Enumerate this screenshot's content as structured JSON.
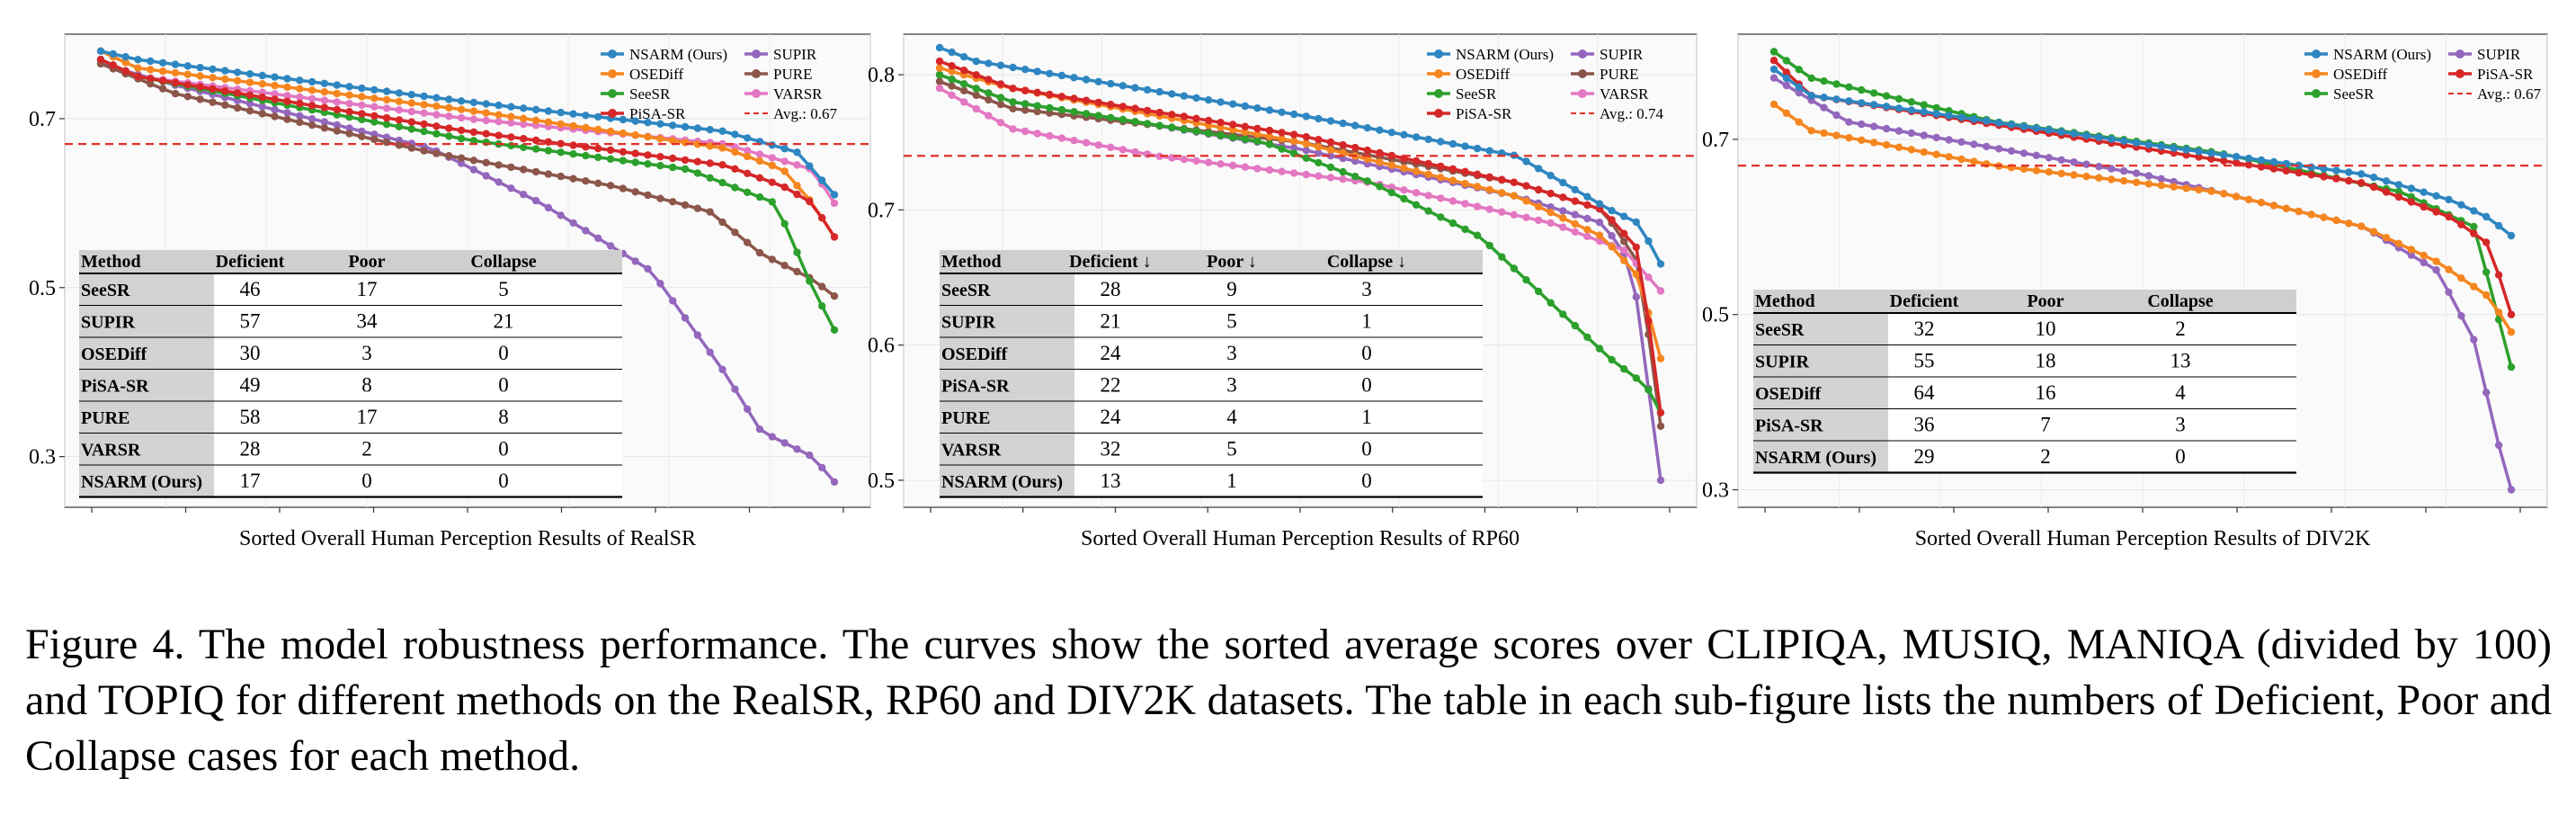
{
  "figure": {
    "caption": "Figure 4.  The model robustness performance.  The curves show the sorted average scores over CLIPIQA, MUSIQ, MANIQA (divided by 100) and TOPIQ for different methods on the RealSR, RP60 and DIV2K datasets.  The table in each sub-figure lists the numbers of Deficient, Poor and Collapse cases for each method."
  },
  "colors": {
    "NSARM (Ours)": "#2e86c1",
    "OSEDiff": "#f5861f",
    "SeeSR": "#2ca02c",
    "PiSA-SR": "#d62728",
    "SUPIR": "#9467bd",
    "PURE": "#8c564b",
    "VARSR": "#e377c2",
    "avg": "#e0302a",
    "table_header_bg": "#cfcfcf",
    "table_label_bg": "#d3d3d3",
    "panel_bg": "#fafafa"
  },
  "chart_data": [
    {
      "type": "line",
      "title": "",
      "xlabel": "Sorted Overall Human Perception Results of RealSR",
      "ylabel": "",
      "ylim": [
        0.24,
        0.8
      ],
      "yticks": [
        0.3,
        0.5,
        0.7
      ],
      "ytick_labels": [
        "0.3",
        "0.5",
        "0.7"
      ],
      "n_points": 60,
      "grid": true,
      "legend": "top-right",
      "legend_columns": [
        [
          "NSARM (Ours)",
          "OSEDiff",
          "SeeSR",
          "PiSA-SR"
        ],
        [
          "SUPIR",
          "PURE",
          "VARSR",
          "Avg.: 0.67"
        ]
      ],
      "avg_line": {
        "label": "Avg.: 0.67",
        "value": 0.67
      },
      "series": [
        {
          "name": "NSARM (Ours)",
          "start": 0.78,
          "keypoints": [
            [
              0,
              0.78
            ],
            [
              0.05,
              0.77
            ],
            [
              0.5,
              0.72
            ],
            [
              0.85,
              0.685
            ],
            [
              0.95,
              0.66
            ],
            [
              1,
              0.61
            ]
          ]
        },
        {
          "name": "OSEDiff",
          "start": 0.775,
          "keypoints": [
            [
              0,
              0.78
            ],
            [
              0.05,
              0.76
            ],
            [
              0.5,
              0.71
            ],
            [
              0.85,
              0.665
            ],
            [
              0.93,
              0.64
            ],
            [
              0.97,
              0.6
            ],
            [
              1,
              0.56
            ]
          ]
        },
        {
          "name": "SeeSR",
          "start": 0.77,
          "keypoints": [
            [
              0,
              0.77
            ],
            [
              0.05,
              0.75
            ],
            [
              0.5,
              0.675
            ],
            [
              0.8,
              0.64
            ],
            [
              0.92,
              0.6
            ],
            [
              0.97,
              0.5
            ],
            [
              1,
              0.45
            ]
          ]
        },
        {
          "name": "PiSA-SR",
          "start": 0.77,
          "keypoints": [
            [
              0,
              0.77
            ],
            [
              0.05,
              0.75
            ],
            [
              0.5,
              0.685
            ],
            [
              0.85,
              0.645
            ],
            [
              0.93,
              0.62
            ],
            [
              0.97,
              0.6
            ],
            [
              1,
              0.56
            ]
          ]
        },
        {
          "name": "SUPIR",
          "start": 0.76,
          "keypoints": [
            [
              0,
              0.765
            ],
            [
              0.1,
              0.74
            ],
            [
              0.45,
              0.665
            ],
            [
              0.6,
              0.6
            ],
            [
              0.75,
              0.52
            ],
            [
              0.85,
              0.4
            ],
            [
              0.9,
              0.33
            ],
            [
              0.97,
              0.3
            ],
            [
              1,
              0.27
            ]
          ]
        },
        {
          "name": "PURE",
          "start": 0.76,
          "keypoints": [
            [
              0,
              0.765
            ],
            [
              0.1,
              0.73
            ],
            [
              0.45,
              0.66
            ],
            [
              0.7,
              0.62
            ],
            [
              0.83,
              0.59
            ],
            [
              0.9,
              0.54
            ],
            [
              0.97,
              0.51
            ],
            [
              1,
              0.49
            ]
          ]
        },
        {
          "name": "VARSR",
          "start": 0.77,
          "keypoints": [
            [
              0,
              0.77
            ],
            [
              0.05,
              0.75
            ],
            [
              0.5,
              0.7
            ],
            [
              0.85,
              0.67
            ],
            [
              0.93,
              0.65
            ],
            [
              0.97,
              0.64
            ],
            [
              1,
              0.6
            ]
          ]
        }
      ],
      "table": {
        "headers": [
          "Method",
          "Deficient",
          "Poor",
          "Collapse"
        ],
        "rows": [
          [
            "SeeSR",
            "46",
            "17",
            "5"
          ],
          [
            "SUPIR",
            "57",
            "34",
            "21"
          ],
          [
            "OSEDiff",
            "30",
            "3",
            "0"
          ],
          [
            "PiSA-SR",
            "49",
            "8",
            "0"
          ],
          [
            "PURE",
            "58",
            "17",
            "8"
          ],
          [
            "VARSR",
            "28",
            "2",
            "0"
          ],
          [
            "NSARM (Ours)",
            "17",
            "0",
            "0"
          ]
        ]
      }
    },
    {
      "type": "line",
      "title": "",
      "xlabel": "Sorted Overall Human Perception Results of RP60",
      "ylabel": "",
      "ylim": [
        0.48,
        0.83
      ],
      "yticks": [
        0.5,
        0.6,
        0.7,
        0.8
      ],
      "ytick_labels": [
        "0.5",
        "0.6",
        "0.7",
        "0.8"
      ],
      "n_points": 60,
      "grid": true,
      "legend": "top-right",
      "legend_columns": [
        [
          "NSARM (Ours)",
          "OSEDiff",
          "SeeSR",
          "PiSA-SR"
        ],
        [
          "SUPIR",
          "PURE",
          "VARSR",
          "Avg.: 0.74"
        ]
      ],
      "avg_line": {
        "label": "Avg.: 0.74",
        "value": 0.74
      },
      "series": [
        {
          "name": "NSARM (Ours)",
          "keypoints": [
            [
              0,
              0.82
            ],
            [
              0.05,
              0.81
            ],
            [
              0.5,
              0.77
            ],
            [
              0.8,
              0.74
            ],
            [
              0.93,
              0.7
            ],
            [
              0.97,
              0.69
            ],
            [
              1,
              0.66
            ]
          ]
        },
        {
          "name": "OSEDiff",
          "keypoints": [
            [
              0,
              0.805
            ],
            [
              0.1,
              0.79
            ],
            [
              0.5,
              0.75
            ],
            [
              0.8,
              0.71
            ],
            [
              0.92,
              0.68
            ],
            [
              0.97,
              0.65
            ],
            [
              1,
              0.59
            ]
          ]
        },
        {
          "name": "SeeSR",
          "keypoints": [
            [
              0,
              0.8
            ],
            [
              0.1,
              0.78
            ],
            [
              0.45,
              0.75
            ],
            [
              0.6,
              0.72
            ],
            [
              0.75,
              0.68
            ],
            [
              0.85,
              0.63
            ],
            [
              0.93,
              0.59
            ],
            [
              0.98,
              0.57
            ],
            [
              1,
              0.55
            ]
          ]
        },
        {
          "name": "PiSA-SR",
          "keypoints": [
            [
              0,
              0.81
            ],
            [
              0.1,
              0.79
            ],
            [
              0.5,
              0.755
            ],
            [
              0.8,
              0.72
            ],
            [
              0.92,
              0.7
            ],
            [
              0.97,
              0.67
            ],
            [
              1,
              0.55
            ]
          ]
        },
        {
          "name": "SUPIR",
          "keypoints": [
            [
              0,
              0.8
            ],
            [
              0.1,
              0.78
            ],
            [
              0.5,
              0.745
            ],
            [
              0.8,
              0.71
            ],
            [
              0.92,
              0.69
            ],
            [
              0.96,
              0.66
            ],
            [
              1,
              0.5
            ]
          ]
        },
        {
          "name": "PURE",
          "keypoints": [
            [
              0,
              0.795
            ],
            [
              0.1,
              0.775
            ],
            [
              0.5,
              0.75
            ],
            [
              0.8,
              0.72
            ],
            [
              0.92,
              0.7
            ],
            [
              0.97,
              0.66
            ],
            [
              1,
              0.54
            ]
          ]
        },
        {
          "name": "VARSR",
          "keypoints": [
            [
              0,
              0.79
            ],
            [
              0.1,
              0.76
            ],
            [
              0.3,
              0.74
            ],
            [
              0.6,
              0.72
            ],
            [
              0.85,
              0.69
            ],
            [
              0.95,
              0.67
            ],
            [
              1,
              0.64
            ]
          ]
        }
      ],
      "table": {
        "headers": [
          "Method",
          "Deficient ↓",
          "Poor ↓",
          "Collapse ↓"
        ],
        "rows": [
          [
            "SeeSR",
            "28",
            "9",
            "3"
          ],
          [
            "SUPIR",
            "21",
            "5",
            "1"
          ],
          [
            "OSEDiff",
            "24",
            "3",
            "0"
          ],
          [
            "PiSA-SR",
            "22",
            "3",
            "0"
          ],
          [
            "PURE",
            "24",
            "4",
            "1"
          ],
          [
            "VARSR",
            "32",
            "5",
            "0"
          ],
          [
            "NSARM (Ours)",
            "13",
            "1",
            "0"
          ]
        ]
      }
    },
    {
      "type": "line",
      "title": "",
      "xlabel": "Sorted Overall Human Perception Results of DIV2K",
      "ylabel": "",
      "ylim": [
        0.28,
        0.82
      ],
      "yticks": [
        0.3,
        0.5,
        0.7
      ],
      "ytick_labels": [
        "0.3",
        "0.5",
        "0.7"
      ],
      "n_points": 60,
      "grid": true,
      "legend": "top-right",
      "legend_columns": [
        [
          "NSARM (Ours)",
          "OSEDiff",
          "SeeSR"
        ],
        [
          "SUPIR",
          "PiSA-SR",
          "Avg.: 0.67"
        ]
      ],
      "avg_line": {
        "label": "Avg.: 0.67",
        "value": 0.67
      },
      "series": [
        {
          "name": "NSARM (Ours)",
          "keypoints": [
            [
              0,
              0.78
            ],
            [
              0.05,
              0.75
            ],
            [
              0.5,
              0.695
            ],
            [
              0.8,
              0.66
            ],
            [
              0.92,
              0.63
            ],
            [
              0.97,
              0.61
            ],
            [
              1,
              0.59
            ]
          ]
        },
        {
          "name": "OSEDiff",
          "keypoints": [
            [
              0,
              0.74
            ],
            [
              0.05,
              0.71
            ],
            [
              0.3,
              0.67
            ],
            [
              0.6,
              0.64
            ],
            [
              0.8,
              0.6
            ],
            [
              0.9,
              0.56
            ],
            [
              0.97,
              0.52
            ],
            [
              1,
              0.48
            ]
          ]
        },
        {
          "name": "SeeSR",
          "keypoints": [
            [
              0,
              0.8
            ],
            [
              0.05,
              0.77
            ],
            [
              0.3,
              0.72
            ],
            [
              0.6,
              0.685
            ],
            [
              0.85,
              0.64
            ],
            [
              0.95,
              0.6
            ],
            [
              1,
              0.44
            ]
          ]
        },
        {
          "name": "SUPIR",
          "keypoints": [
            [
              0,
              0.77
            ],
            [
              0.1,
              0.72
            ],
            [
              0.5,
              0.66
            ],
            [
              0.8,
              0.6
            ],
            [
              0.9,
              0.55
            ],
            [
              0.95,
              0.47
            ],
            [
              0.98,
              0.36
            ],
            [
              1,
              0.3
            ]
          ]
        },
        {
          "name": "PiSA-SR",
          "keypoints": [
            [
              0,
              0.79
            ],
            [
              0.05,
              0.75
            ],
            [
              0.5,
              0.69
            ],
            [
              0.8,
              0.65
            ],
            [
              0.92,
              0.61
            ],
            [
              0.97,
              0.58
            ],
            [
              1,
              0.5
            ]
          ]
        }
      ],
      "table": {
        "headers": [
          "Method",
          "Deficient",
          "Poor",
          "Collapse"
        ],
        "rows": [
          [
            "SeeSR",
            "32",
            "10",
            "2"
          ],
          [
            "SUPIR",
            "55",
            "18",
            "13"
          ],
          [
            "OSEDiff",
            "64",
            "16",
            "4"
          ],
          [
            "PiSA-SR",
            "36",
            "7",
            "3"
          ],
          [
            "NSARM (Ours)",
            "29",
            "2",
            "0"
          ]
        ]
      }
    }
  ]
}
